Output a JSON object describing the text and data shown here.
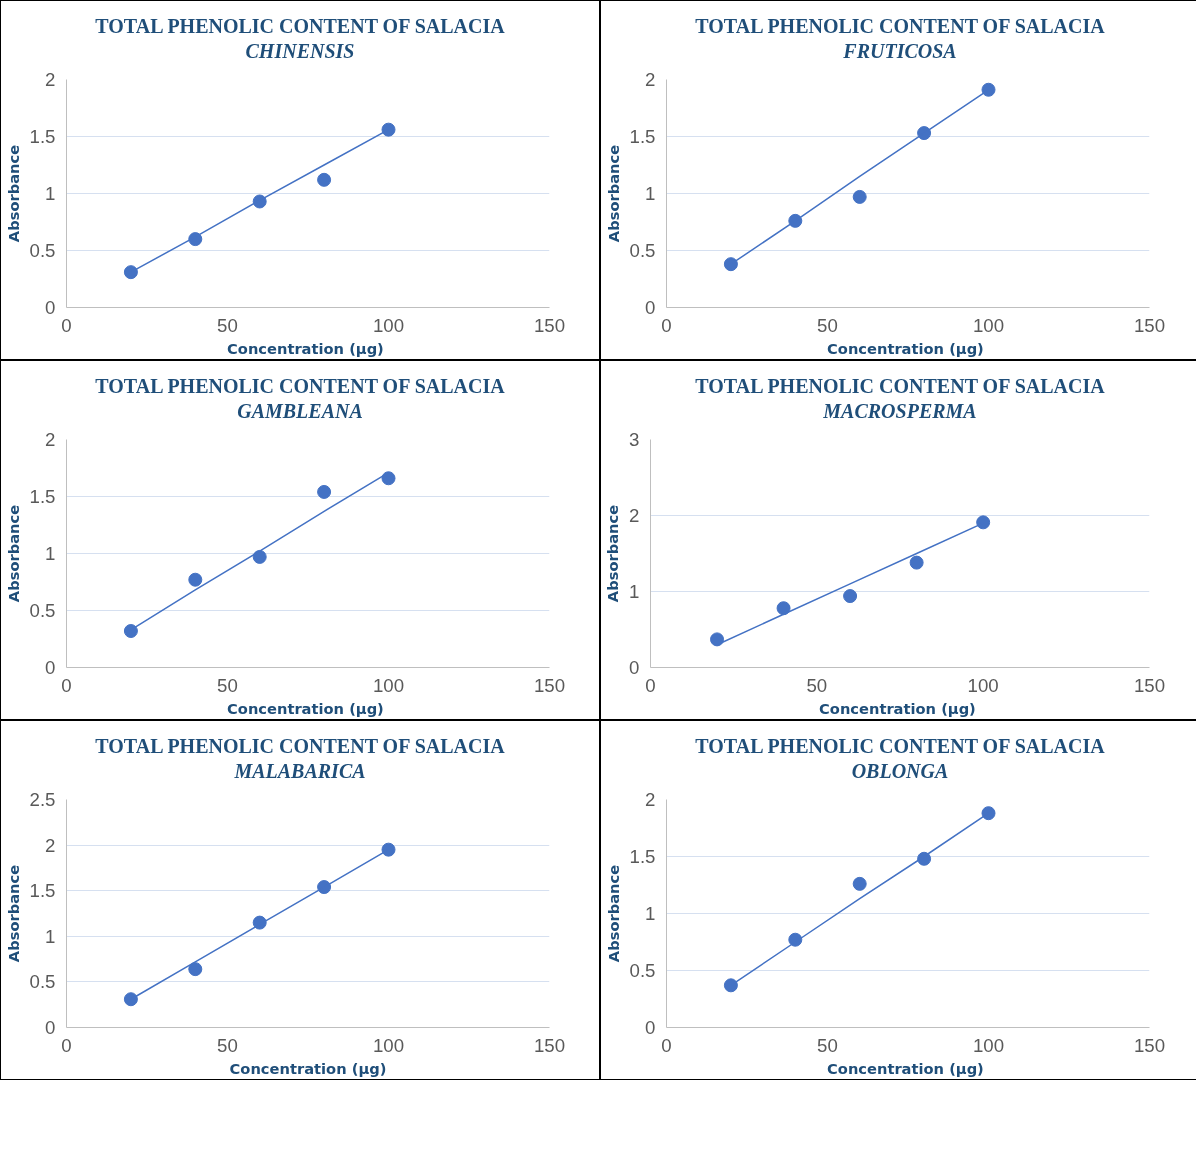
{
  "chart_data": [
    {
      "type": "scatter",
      "title": "TOTAL PHENOLIC CONTENT OF SALACIA CHINENSIS",
      "xlabel": "Concentration  (µg)",
      "ylabel": "Absorbance",
      "x": [
        20,
        40,
        60,
        80,
        100
      ],
      "marker": "circle",
      "grid": "y",
      "xlim": [
        0,
        150
      ],
      "xticks": [
        0,
        50,
        100,
        150
      ],
      "ylim": [
        0,
        2
      ],
      "yticks": [
        0,
        0.5,
        1,
        1.5,
        2
      ],
      "series": [
        {
          "color": "#4472c4",
          "values": [
            0.31,
            0.6,
            0.93,
            1.12,
            1.56
          ]
        },
        {
          "type": "line",
          "color": "#4472c4",
          "marker": "none",
          "values": [
            0.31,
            0.62,
            0.94,
            1.25,
            1.56
          ]
        }
      ]
    },
    {
      "type": "scatter",
      "title": "TOTAL PHENOLIC CONTENT OF SALACIA FRUTICOSA",
      "xlabel": "Concentration  (µg)",
      "ylabel": "Absorbance",
      "x": [
        20,
        40,
        60,
        80,
        100
      ],
      "marker": "circle",
      "grid": "y",
      "xlim": [
        0,
        150
      ],
      "xticks": [
        0,
        50,
        100,
        150
      ],
      "ylim": [
        0,
        2
      ],
      "yticks": [
        0,
        0.5,
        1,
        1.5,
        2
      ],
      "series": [
        {
          "color": "#4472c4",
          "values": [
            0.38,
            0.76,
            0.97,
            1.53,
            1.91
          ]
        },
        {
          "type": "line",
          "color": "#4472c4",
          "marker": "none",
          "values": [
            0.38,
            0.76,
            1.15,
            1.53,
            1.91
          ]
        }
      ]
    },
    {
      "type": "scatter",
      "title": "TOTAL PHENOLIC CONTENT OF  SALACIA GAMBLEANA",
      "xlabel": "Concentration  (µg)",
      "ylabel": "Absorbance",
      "x": [
        20,
        40,
        60,
        80,
        100
      ],
      "marker": "circle",
      "grid": "y",
      "xlim": [
        0,
        150
      ],
      "xticks": [
        0,
        50,
        100,
        150
      ],
      "ylim": [
        0,
        2
      ],
      "yticks": [
        0,
        0.5,
        1,
        1.5,
        2
      ],
      "series": [
        {
          "color": "#4472c4",
          "values": [
            0.32,
            0.77,
            0.97,
            1.54,
            1.66
          ]
        },
        {
          "type": "line",
          "color": "#4472c4",
          "marker": "none",
          "values": [
            0.33,
            0.68,
            1.02,
            1.37,
            1.71
          ]
        }
      ]
    },
    {
      "type": "scatter",
      "title": "TOTAL PHENOLIC CONTENT OF SALACIA MACROSPERMA",
      "xlabel": "Concentration  (µg)",
      "ylabel": "Absorbance",
      "x": [
        20,
        40,
        60,
        80,
        100
      ],
      "marker": "circle",
      "grid": "y",
      "xlim": [
        0,
        150
      ],
      "xticks": [
        0,
        50,
        100,
        150
      ],
      "ylim": [
        0,
        3
      ],
      "yticks": [
        0,
        1,
        2,
        3
      ],
      "series": [
        {
          "color": "#4472c4",
          "values": [
            0.37,
            0.78,
            0.94,
            1.38,
            1.91
          ]
        },
        {
          "type": "line",
          "color": "#4472c4",
          "marker": "none",
          "values": [
            0.3,
            0.7,
            1.1,
            1.5,
            1.9
          ]
        }
      ]
    },
    {
      "type": "scatter",
      "title": "TOTAL PHENOLIC CONTENT OF SALACIA MALABARICA",
      "xlabel": "Concentration (µg)",
      "ylabel": "Absorbance",
      "x": [
        20,
        40,
        60,
        80,
        100
      ],
      "marker": "circle",
      "grid": "y",
      "xlim": [
        0,
        150
      ],
      "xticks": [
        0,
        50,
        100,
        150
      ],
      "ylim": [
        0,
        2.5
      ],
      "yticks": [
        0,
        0.5,
        1,
        1.5,
        2,
        2.5
      ],
      "series": [
        {
          "color": "#4472c4",
          "values": [
            0.31,
            0.64,
            1.15,
            1.54,
            1.95
          ]
        },
        {
          "type": "line",
          "color": "#4472c4",
          "marker": "none",
          "values": [
            0.31,
            0.72,
            1.13,
            1.54,
            1.95
          ]
        }
      ]
    },
    {
      "type": "scatter",
      "title": "TOTAL PHENOLIC CONTENT OF SALACIA OBLONGA",
      "xlabel": "Concentration  (µg)",
      "ylabel": "Absorbance",
      "x": [
        20,
        40,
        60,
        80,
        100
      ],
      "marker": "circle",
      "grid": "y",
      "xlim": [
        0,
        150
      ],
      "xticks": [
        0,
        50,
        100,
        150
      ],
      "ylim": [
        0,
        2
      ],
      "yticks": [
        0,
        0.5,
        1,
        1.5,
        2
      ],
      "series": [
        {
          "color": "#4472c4",
          "values": [
            0.37,
            0.77,
            1.26,
            1.48,
            1.88
          ]
        },
        {
          "type": "line",
          "color": "#4472c4",
          "marker": "none",
          "values": [
            0.37,
            0.75,
            1.13,
            1.5,
            1.88
          ]
        }
      ]
    }
  ]
}
